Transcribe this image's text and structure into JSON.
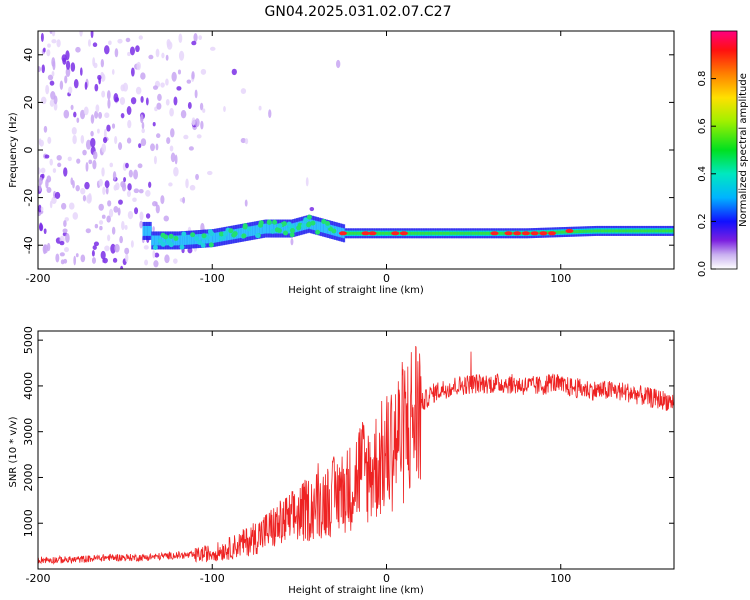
{
  "title": "GN04.2025.031.02.07.C27",
  "chart_data": [
    {
      "type": "heatmap",
      "xlabel": "Height of straight line (km)",
      "ylabel": "Frequency (Hz)",
      "xlim": [
        -200,
        165
      ],
      "ylim": [
        -50,
        50
      ],
      "xticks": [
        -200,
        -100,
        0,
        100
      ],
      "yticks": [
        -40,
        -20,
        0,
        20,
        40
      ],
      "colorbar": {
        "label": "Normalized spectral amplitude",
        "range": [
          0,
          1
        ],
        "ticks": [
          0.0,
          0.2,
          0.4,
          0.6,
          0.8
        ],
        "tick_labels": [
          "0.0",
          "0.2",
          "0.4",
          "0.6",
          "0.8"
        ]
      },
      "ridge": [
        {
          "x": -135,
          "y": -38
        },
        {
          "x": -120,
          "y": -38
        },
        {
          "x": -100,
          "y": -37
        },
        {
          "x": -85,
          "y": -35
        },
        {
          "x": -70,
          "y": -33
        },
        {
          "x": -55,
          "y": -33
        },
        {
          "x": -45,
          "y": -31
        },
        {
          "x": -35,
          "y": -33
        },
        {
          "x": -25,
          "y": -35
        },
        {
          "x": 0,
          "y": -35
        },
        {
          "x": 40,
          "y": -35
        },
        {
          "x": 80,
          "y": -35
        },
        {
          "x": 120,
          "y": -34
        },
        {
          "x": 165,
          "y": -34
        }
      ],
      "grid": false
    },
    {
      "type": "line",
      "xlabel": "Height of straight line (km)",
      "ylabel": "SNR (10 * v/v)",
      "xlim": [
        -200,
        165
      ],
      "ylim": [
        0,
        5200
      ],
      "xticks": [
        -200,
        -100,
        0,
        100
      ],
      "yticks": [
        1000,
        2000,
        3000,
        4000,
        5000
      ],
      "color": "#ee2222",
      "series": [
        {
          "x": [
            -200,
            -180,
            -160,
            -140,
            -120,
            -110,
            -100,
            -90,
            -80,
            -70,
            -60,
            -50,
            -40,
            -30,
            -20,
            -15,
            -10,
            -5,
            0,
            5,
            10,
            15,
            20,
            25,
            30,
            40,
            50,
            60,
            70,
            80,
            90,
            95,
            100,
            110,
            120,
            130,
            140,
            150,
            165
          ],
          "values": [
            200,
            200,
            250,
            250,
            300,
            300,
            350,
            450,
            600,
            800,
            1000,
            1200,
            1400,
            1600,
            1800,
            2200,
            2100,
            2300,
            2500,
            2800,
            3000,
            3300,
            3600,
            3800,
            3900,
            4000,
            4050,
            4050,
            4050,
            4000,
            4000,
            4100,
            4000,
            3950,
            3900,
            3900,
            3850,
            3750,
            3650
          ]
        }
      ],
      "grid": false
    }
  ]
}
